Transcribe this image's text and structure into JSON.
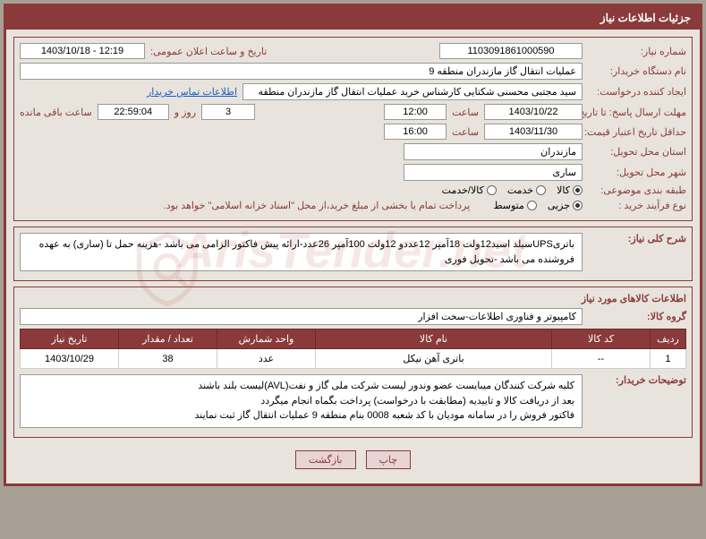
{
  "header": {
    "title": "جزئیات اطلاعات نیاز"
  },
  "need_number": {
    "label": "شماره نیاز:",
    "value": "1103091861000590"
  },
  "announce": {
    "label": "تاریخ و ساعت اعلان عمومی:",
    "value": "1403/10/18 - 12:19"
  },
  "buyer_org": {
    "label": "نام دستگاه خریدار:",
    "value": "عملیات انتقال گاز مازندران منطقه 9"
  },
  "requester": {
    "label": "ایجاد کننده درخواست:",
    "value": "سید مجتبی محسنی شکتایی کارشناس خرید عملیات انتقال گاز مازندران منطقه",
    "link": "اطلاعات تماس خریدار"
  },
  "deadline": {
    "label": "مهلت ارسال پاسخ: تا تاریخ:",
    "date": "1403/10/22",
    "time_label": "ساعت",
    "time": "12:00",
    "days": "3",
    "days_label": "روز و",
    "remain": "22:59:04",
    "remain_label": "ساعت باقی مانده"
  },
  "validity": {
    "label": "حداقل تاریخ اعتبار قیمت: تا تاریخ:",
    "date": "1403/11/30",
    "time_label": "ساعت",
    "time": "16:00"
  },
  "province": {
    "label": "استان محل تحویل:",
    "value": "مازندران"
  },
  "city": {
    "label": "شهر محل تحویل:",
    "value": "ساری"
  },
  "category": {
    "label": "طبقه بندی موضوعی:",
    "options": [
      "کالا",
      "خدمت",
      "کالا/خدمت"
    ],
    "selected": 0
  },
  "purchase_type": {
    "label": "نوع فرآیند خرید :",
    "options": [
      "جزیی",
      "متوسط"
    ],
    "selected": 0,
    "note": "پرداخت تمام یا بخشی از مبلغ خرید،از محل \"اسناد خزانه اسلامی\" خواهد بود."
  },
  "summary": {
    "label": "شرح کلی نیاز:",
    "text": "باتریUPSسیلد اسید12ولت 18آمپر 12عددو 12ولت 100آمپر 26عدد-ارائه پیش فاکتور  الزامی می باشد -هزینه حمل تا (ساری) به عهده فروشنده می باشد -تحویل فوری"
  },
  "goods_section": {
    "title": "اطلاعات کالاهای مورد نیاز"
  },
  "goods_group": {
    "label": "گروه کالا:",
    "value": "کامپیوتر و فناوری اطلاعات-سخت افزار"
  },
  "table": {
    "headers": [
      "ردیف",
      "کد کالا",
      "نام کالا",
      "واحد شمارش",
      "تعداد / مقدار",
      "تاریخ نیاز"
    ],
    "rows": [
      [
        "1",
        "--",
        "باتری آهن نیکل",
        "عدد",
        "38",
        "1403/10/29"
      ]
    ]
  },
  "buyer_notes": {
    "label": "توضیحات خریدار:",
    "lines": [
      "کلیه شرکت کنندگان میبایست عضو وندور لیست شرکت ملی گاز و نفت(AVL)لیست بلند باشند",
      "بعد از دریافت کالا و تاییدیه (مطابقت با درخواست) پرداخت بگماه انجام میگردد",
      "فاکتور فروش را در سامانه مودیان با کد شعبه 0008 بنام منطقه 9 عملیات انتقال گاز ثبت نمایند"
    ]
  },
  "buttons": {
    "print": "چاپ",
    "back": "بازگشت"
  },
  "watermark": "ArisTender.net",
  "colors": {
    "brand": "#8a3a3a",
    "bg": "#e8e4dd",
    "outer_bg": "#a8a095",
    "link": "#1a5dc7"
  }
}
